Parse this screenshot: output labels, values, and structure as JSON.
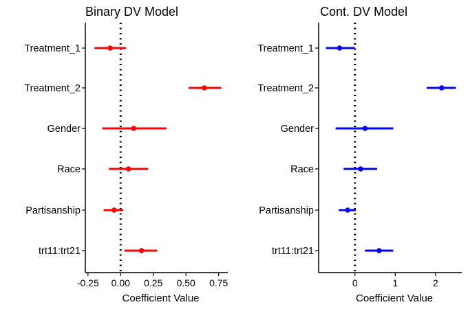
{
  "chart_data": [
    {
      "type": "scatter",
      "subtype": "coefficient-plot",
      "title": "Binary DV Model",
      "xlabel": "Coefficient Value",
      "ylabel": "",
      "xlim": [
        -0.27,
        0.82
      ],
      "xticks": [
        -0.25,
        0.0,
        0.25,
        0.5,
        0.75
      ],
      "xtick_labels": [
        "-0.25",
        "0.00",
        "0.25",
        "0.50",
        "0.75"
      ],
      "reference_line": 0,
      "categories": [
        "Treatment_1",
        "Treatment_2",
        "Gender",
        "Race",
        "Partisanship",
        "trt11:trt21"
      ],
      "estimates": [
        -0.08,
        0.64,
        0.1,
        0.06,
        -0.05,
        0.16
      ],
      "ci_low": [
        -0.2,
        0.52,
        -0.14,
        -0.09,
        -0.13,
        0.03
      ],
      "ci_high": [
        0.04,
        0.77,
        0.35,
        0.21,
        0.02,
        0.28
      ],
      "color": "#ff0000",
      "grid": false
    },
    {
      "type": "scatter",
      "subtype": "coefficient-plot",
      "title": "Cont. DV Model",
      "xlabel": "Coefficient Value",
      "ylabel": "",
      "xlim": [
        -0.9,
        2.65
      ],
      "xticks": [
        0,
        1,
        2
      ],
      "xtick_labels": [
        "0",
        "1",
        "2"
      ],
      "reference_line": 0,
      "categories": [
        "Treatment_1",
        "Treatment_2",
        "Gender",
        "Race",
        "Partisanship",
        "trt11:trt21"
      ],
      "estimates": [
        -0.38,
        2.15,
        0.25,
        0.14,
        -0.18,
        0.6
      ],
      "ci_low": [
        -0.72,
        1.78,
        -0.48,
        -0.28,
        -0.4,
        0.25
      ],
      "ci_high": [
        0.0,
        2.5,
        0.95,
        0.55,
        0.02,
        0.95
      ],
      "color": "#0000ff",
      "grid": false
    }
  ]
}
